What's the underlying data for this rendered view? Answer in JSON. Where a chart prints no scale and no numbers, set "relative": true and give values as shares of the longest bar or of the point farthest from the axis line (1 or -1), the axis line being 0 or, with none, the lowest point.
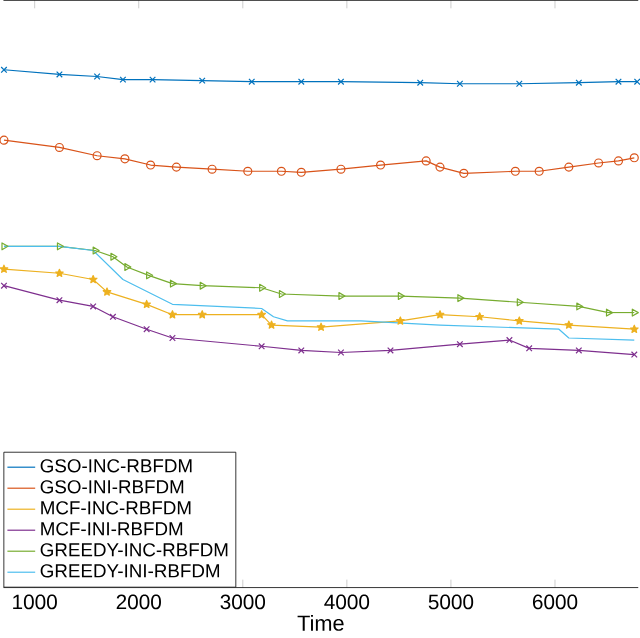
{
  "chart_data": {
    "type": "line",
    "xlabel": "Time",
    "relative": true,
    "xlim": [
      700,
      6800
    ],
    "xticks": [
      1000,
      2000,
      3000,
      4000,
      5000,
      6000
    ],
    "legend": "bottom left",
    "grid": false,
    "tick_labels": "x",
    "series": [
      {
        "name": "GSO-INC-RBFDM",
        "color": "#0072bd",
        "marker": "cross",
        "x": [
          705,
          1238,
          1600,
          1848,
          2133,
          2610,
          3086,
          3562,
          3943,
          4705,
          5086,
          5657,
          6229,
          6610,
          6790
        ],
        "values": [
          1.0,
          0.991,
          0.987,
          0.981,
          0.981,
          0.979,
          0.977,
          0.977,
          0.977,
          0.975,
          0.973,
          0.973,
          0.975,
          0.977,
          0.977
        ]
      },
      {
        "name": "GSO-INI-RBFDM",
        "color": "#d95319",
        "marker": "circle",
        "x": [
          705,
          1238,
          1600,
          1867,
          2114,
          2362,
          2705,
          3048,
          3371,
          3562,
          3943,
          4324,
          4762,
          4895,
          5124,
          5619,
          5848,
          6133,
          6419,
          6610,
          6762
        ],
        "values": [
          0.864,
          0.85,
          0.834,
          0.828,
          0.816,
          0.812,
          0.808,
          0.804,
          0.804,
          0.802,
          0.808,
          0.816,
          0.824,
          0.812,
          0.8,
          0.804,
          0.804,
          0.812,
          0.82,
          0.824,
          0.83
        ]
      },
      {
        "name": "MCF-INC-RBFDM",
        "color": "#edb120",
        "marker": "star",
        "x": [
          705,
          1238,
          1562,
          1695,
          2076,
          2324,
          2610,
          3181,
          3276,
          3752,
          4514,
          4895,
          5276,
          5657,
          6133,
          6762
        ],
        "values": [
          0.615,
          0.607,
          0.595,
          0.571,
          0.547,
          0.527,
          0.527,
          0.527,
          0.507,
          0.503,
          0.515,
          0.527,
          0.523,
          0.515,
          0.507,
          0.499
        ]
      },
      {
        "name": "MCF-INI-RBFDM",
        "color": "#7e2f8e",
        "marker": "cross",
        "x": [
          705,
          1238,
          1562,
          1752,
          2076,
          2324,
          3181,
          3562,
          3943,
          4419,
          5086,
          5562,
          5752,
          6229,
          6762
        ],
        "values": [
          0.583,
          0.555,
          0.543,
          0.523,
          0.499,
          0.482,
          0.466,
          0.458,
          0.454,
          0.458,
          0.47,
          0.478,
          0.462,
          0.458,
          0.45
        ]
      },
      {
        "name": "GREEDY-INC-RBFDM",
        "color": "#77ac30",
        "marker": "triangle",
        "x": [
          705,
          1238,
          1581,
          1752,
          1886,
          2095,
          2324,
          2610,
          3181,
          3371,
          3943,
          4514,
          5086,
          5657,
          6229,
          6514,
          6762
        ],
        "values": [
          0.659,
          0.659,
          0.651,
          0.639,
          0.619,
          0.603,
          0.587,
          0.583,
          0.579,
          0.567,
          0.563,
          0.563,
          0.559,
          0.551,
          0.543,
          0.531,
          0.531
        ]
      },
      {
        "name": "GREEDY-INI-RBFDM",
        "color": "#4dbeee",
        "marker": "none",
        "x": [
          705,
          1238,
          1562,
          1848,
          2324,
          3181,
          3295,
          3429,
          4133,
          4895,
          6038,
          6133,
          6762
        ],
        "values": [
          0.659,
          0.659,
          0.651,
          0.595,
          0.547,
          0.539,
          0.523,
          0.515,
          0.515,
          0.507,
          0.499,
          0.482,
          0.478
        ]
      }
    ]
  }
}
